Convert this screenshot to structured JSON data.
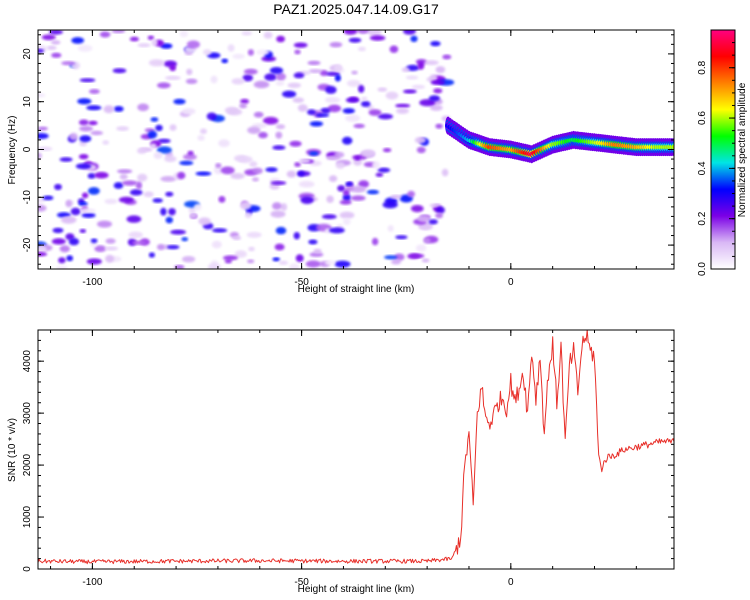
{
  "figure": {
    "title": "PAZ1.2025.047.14.09.G17"
  },
  "chart_data": [
    {
      "type": "heatmap",
      "title": "PAZ1.2025.047.14.09.G17",
      "xlabel": "Height of straight line (km)",
      "ylabel": "Frequency (Hz)",
      "xlim": [
        -113,
        39
      ],
      "ylim": [
        -25,
        25
      ],
      "x_ticks": [
        -100,
        -50,
        0
      ],
      "y_ticks": [
        -20,
        -10,
        0,
        10,
        20
      ],
      "colorbar": {
        "label": "Normalized spectral amplitude",
        "range": [
          0,
          0.95
        ],
        "ticks": [
          0.0,
          0.2,
          0.4,
          0.6,
          0.8
        ],
        "tick_labels": [
          "0.0",
          "0.2",
          "0.4",
          "0.6",
          "0.8"
        ],
        "colors": [
          "#ffffff",
          "#d9b8f5",
          "#7b00e6",
          "#0000ff",
          "#00e5e5",
          "#00ff00",
          "#ffff00",
          "#ff8000",
          "#ff0000",
          "#ff0080"
        ]
      },
      "ridge": {
        "description_points_x": [
          -15,
          -10,
          -5,
          0,
          5,
          10,
          15,
          20,
          25,
          30,
          35,
          39
        ],
        "frequency_hz": [
          5,
          2,
          0.5,
          0,
          -1,
          1,
          2,
          1.5,
          1,
          0.5,
          0.5,
          0.5
        ],
        "amplitude": [
          0.3,
          0.4,
          0.8,
          0.7,
          0.9,
          0.6,
          0.5,
          0.6,
          0.75,
          0.7,
          0.6,
          0.6
        ]
      },
      "noise_region_x": [
        -113,
        -15
      ],
      "noise_amplitude_max": 0.35
    },
    {
      "type": "line",
      "xlabel": "Height of straight line (km)",
      "ylabel": "SNR (10 * v/v)",
      "xlim": [
        -113,
        39
      ],
      "ylim": [
        0,
        4600
      ],
      "x_ticks": [
        -100,
        -50,
        0
      ],
      "y_ticks": [
        0,
        1000,
        2000,
        3000,
        4000
      ],
      "series": [
        {
          "color": "#e8302a",
          "x": [
            -113,
            -100,
            -80,
            -60,
            -40,
            -20,
            -14,
            -12,
            -11,
            -10,
            -9,
            -8,
            -7,
            -6,
            -5,
            -4,
            -3,
            -2,
            -1,
            0,
            1,
            2,
            3,
            4,
            5,
            6,
            7,
            8,
            9,
            10,
            11,
            12,
            13,
            14,
            15,
            16,
            17,
            18,
            19,
            20,
            21,
            22,
            23,
            25,
            27,
            30,
            33,
            36,
            39
          ],
          "y": [
            150,
            140,
            150,
            160,
            150,
            150,
            200,
            600,
            2000,
            2600,
            1200,
            3000,
            3500,
            2900,
            2800,
            3000,
            3200,
            3300,
            3100,
            3600,
            3200,
            3500,
            3800,
            3000,
            4200,
            3300,
            4100,
            2600,
            3800,
            4300,
            3200,
            4300,
            2400,
            3900,
            4200,
            3400,
            4300,
            4500,
            4200,
            4100,
            2100,
            2000,
            2150,
            2200,
            2300,
            2350,
            2400,
            2450,
            2450
          ]
        }
      ]
    }
  ]
}
